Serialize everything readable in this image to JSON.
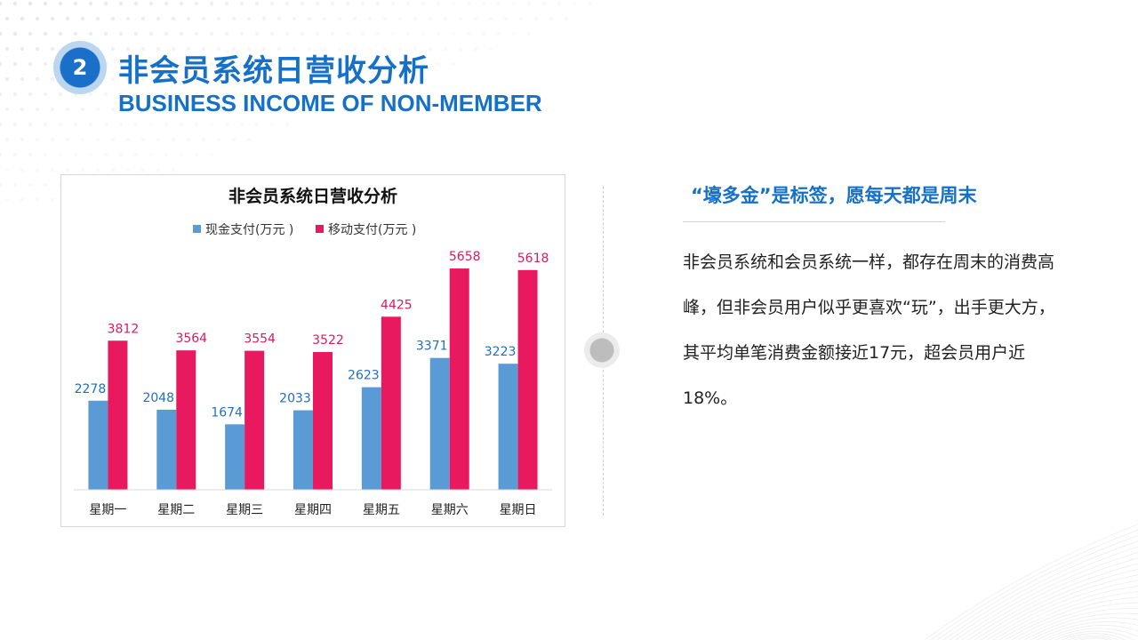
{
  "header": {
    "badge_number": "2",
    "title_cn": "非会员系统日营收分析",
    "title_en": "BUSINESS INCOME OF NON-MEMBER"
  },
  "chart_data": {
    "type": "bar",
    "title": "非会员系统日营收分析",
    "categories": [
      "星期一",
      "星期二",
      "星期三",
      "星期四",
      "星期五",
      "星期六",
      "星期日"
    ],
    "series": [
      {
        "name": "现金支付(万元 )",
        "values": [
          2278,
          2048,
          1674,
          2033,
          2623,
          3371,
          3223
        ],
        "color": "#5b9bd5",
        "label_color": "#1f6fc0"
      },
      {
        "name": "移动支付(万元 )",
        "values": [
          3812,
          3564,
          3554,
          3522,
          4425,
          5658,
          5618
        ],
        "color": "#e8195f",
        "label_color": "#d81b60"
      }
    ],
    "ylim": [
      0,
      6000
    ],
    "grid": false,
    "legend_position": "top"
  },
  "right": {
    "headline": "“壕多金”是标签，愿每天都是周末",
    "paragraph": "非会员系统和会员系统一样，都存在周末的消费高峰，但非会员用户似乎更喜欢“玩”，出手更大方，其平均单笔消费金额接近17元，超会员用户近18%。"
  },
  "colors": {
    "accent": "#1570c8"
  }
}
